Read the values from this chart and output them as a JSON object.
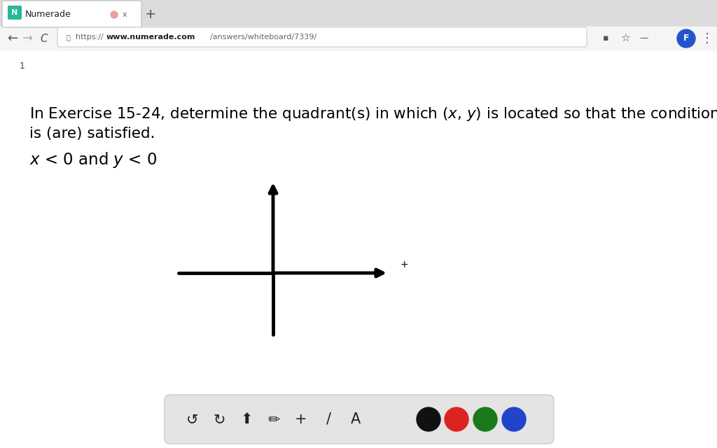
{
  "bg_color": "#e8e8e8",
  "content_bg": "#ffffff",
  "tab_bar_bg": "#dcdcdc",
  "tab_bg": "#ffffff",
  "tab_text": "Numerade",
  "tab_icon_color": "#26b89a",
  "url": "https://www.numerade.com/answers/whiteboard/7339/",
  "url_bold_part": "www.numerade.com",
  "nav_bar_bg": "#f5f5f5",
  "page_num": "1",
  "text_color": "#000000",
  "text_gray": "#555555",
  "axis_color": "#000000",
  "axis_linewidth": 3.5,
  "plus_sign": "+",
  "toolbar_bg": "#e0e0e0",
  "dot_colors": [
    "#111111",
    "#dd2222",
    "#1a7a1a",
    "#2244cc"
  ],
  "profile_color": "#2255cc",
  "badge_color": "#ffffff"
}
